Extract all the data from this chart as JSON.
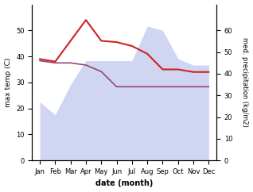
{
  "months": [
    "Jan",
    "Feb",
    "Mar",
    "Apr",
    "May",
    "Jun",
    "Jul",
    "Aug",
    "Sep",
    "Oct",
    "Nov",
    "Dec"
  ],
  "x": [
    0,
    1,
    2,
    3,
    4,
    5,
    6,
    7,
    8,
    9,
    10,
    11
  ],
  "precip_y": [
    27,
    21,
    35,
    46,
    46,
    46,
    46,
    62,
    60,
    47,
    44,
    44
  ],
  "temp_y": [
    39,
    38,
    46,
    54,
    46,
    45.5,
    44,
    41,
    35,
    35,
    34,
    34
  ],
  "median_y": [
    46,
    45,
    45,
    44,
    41,
    34,
    34,
    34,
    34,
    34,
    34,
    34
  ],
  "temp_color": "#cc2222",
  "precip_fill_color": "#aab4e8",
  "median_line_color": "#994477",
  "fill_alpha": 0.55,
  "ylabel_left": "max temp (C)",
  "ylabel_right": "med. precipitation (kg/m2)",
  "xlabel": "date (month)",
  "ylim_left": [
    0,
    60
  ],
  "ylim_right": [
    0,
    72
  ],
  "yticks_left": [
    0,
    10,
    20,
    30,
    40,
    50
  ],
  "yticks_right": [
    0,
    10,
    20,
    30,
    40,
    50,
    60
  ]
}
